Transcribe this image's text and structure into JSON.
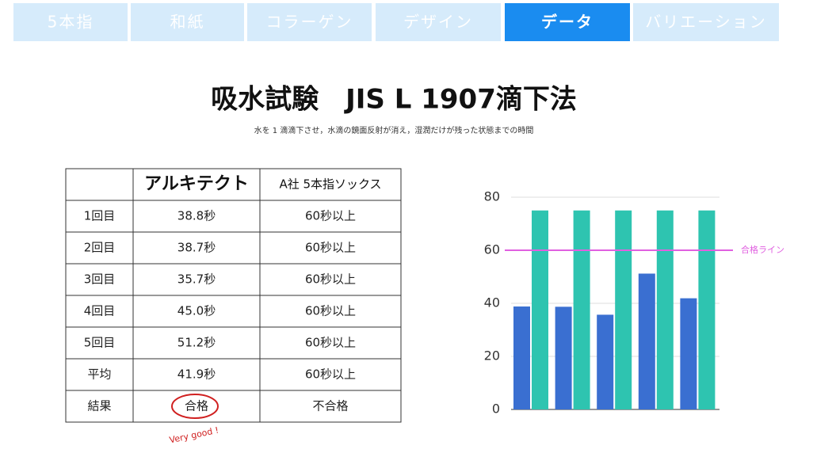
{
  "tabs": [
    "5本指",
    "和紙",
    "コラーゲン",
    "デザイン",
    "データ",
    "バリエーション"
  ],
  "active_tab": 4,
  "header": {
    "title": "吸水試験　JIS L 1907滴下法",
    "subtitle": "水を 1 滴滴下させ，水滴の鏡面反射が消え，湿潤だけが残った状態までの時間"
  },
  "table": {
    "columns": [
      "アルキテクト",
      "A社 5本指ソックス"
    ],
    "rows": [
      [
        "1回目",
        "38.8秒",
        "60秒以上"
      ],
      [
        "2回目",
        "38.7秒",
        "60秒以上"
      ],
      [
        "3回目",
        "35.7秒",
        "60秒以上"
      ],
      [
        "4回目",
        "45.0秒",
        "60秒以上"
      ],
      [
        "5回目",
        "51.2秒",
        "60秒以上"
      ],
      [
        "平均",
        "41.9秒",
        "60秒以上"
      ],
      [
        "結果",
        "合格",
        "不合格"
      ]
    ]
  },
  "annotation": "Very good !",
  "chart_data": {
    "type": "bar",
    "categories": [
      null,
      null,
      null,
      null,
      null
    ],
    "series": [
      {
        "color": "#3a6fd1",
        "values": [
          38.8,
          38.7,
          35.7,
          51.2,
          41.9
        ]
      },
      {
        "color": "#2ec4b0",
        "values": [
          75,
          75,
          75,
          75,
          75
        ]
      }
    ],
    "ylim": [
      0,
      80
    ],
    "yticks": [
      0,
      20,
      40,
      60,
      80
    ],
    "grid": true,
    "reference_line": {
      "value": 60,
      "label": "合格ライン",
      "color": "#e060e0"
    }
  }
}
